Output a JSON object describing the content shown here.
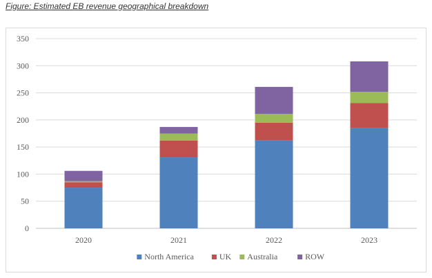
{
  "caption": "Figure: Estimated EB revenue geographical breakdown",
  "chart_data": {
    "type": "bar",
    "stacked": true,
    "categories": [
      "2020",
      "2021",
      "2022",
      "2023"
    ],
    "series": [
      {
        "name": "North America",
        "color": "#4f81bd",
        "values": [
          75,
          131,
          162,
          185
        ]
      },
      {
        "name": "UK",
        "color": "#c0504d",
        "values": [
          10,
          31,
          33,
          46
        ]
      },
      {
        "name": "Australia",
        "color": "#9bbb59",
        "values": [
          2,
          13,
          16,
          21
        ]
      },
      {
        "name": "ROW",
        "color": "#8064a2",
        "values": [
          19,
          12,
          50,
          56
        ]
      }
    ],
    "ylim": [
      0,
      350
    ],
    "yticks": [
      0,
      50,
      100,
      150,
      200,
      250,
      300,
      350
    ],
    "grid": true,
    "legend": "bottom",
    "title": "",
    "xlabel": "",
    "ylabel": ""
  }
}
